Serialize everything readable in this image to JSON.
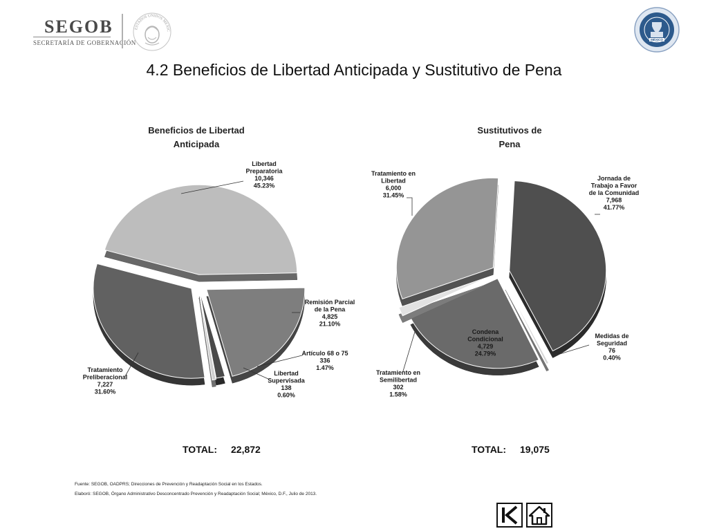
{
  "header": {
    "logo_text": "SEGOB",
    "logo_subtitle": "SECRETARÍA DE GOBERNACIÓN",
    "seal_text": "ESTADOS UNIDOS MEXICANOS",
    "right_logo_text": "MÉXICO",
    "title": "4.2 Beneficios de Libertad Anticipada y Sustitutivo de Pena"
  },
  "chart_data": [
    {
      "type": "pie",
      "title": [
        "Beneficios de Libertad",
        "Anticipada"
      ],
      "slices": [
        {
          "label": [
            "Libertad",
            "Preparatoria"
          ],
          "value": 10346,
          "value_text": "10,346",
          "percent": "45.23%",
          "color": "#bdbdbd"
        },
        {
          "label": [
            "Remisión Parcial",
            "de la Pena"
          ],
          "value": 4825,
          "value_text": "4,825",
          "percent": "21.10%",
          "color": "#7e7e7e"
        },
        {
          "label": [
            "Artículo 68 o 75"
          ],
          "value": 336,
          "value_text": "336",
          "percent": "1.47%",
          "color": "#4a4a4a"
        },
        {
          "label": [
            "Libertad",
            "Supervisada"
          ],
          "value": 138,
          "value_text": "138",
          "percent": "0.60%",
          "color": "#d0d0d0"
        },
        {
          "label": [
            "Tratamiento",
            "Preliberacional"
          ],
          "value": 7227,
          "value_text": "7,227",
          "percent": "31.60%",
          "color": "#616161"
        }
      ],
      "total_label": "TOTAL:",
      "total_value": "22,872"
    },
    {
      "type": "pie",
      "title": [
        "Sustitutivos de",
        "Pena"
      ],
      "slices": [
        {
          "label": [
            "Jornada de",
            "Trabajo a Favor",
            "de la Comunidad"
          ],
          "value": 7968,
          "value_text": "7,968",
          "percent": "41.77%",
          "color": "#4f4f4f"
        },
        {
          "label": [
            "Medidas de",
            "Seguridad"
          ],
          "value": 76,
          "value_text": "76",
          "percent": "0.40%",
          "color": "#d6d6d6"
        },
        {
          "label": [
            "Condena",
            "Condicional"
          ],
          "value": 4729,
          "value_text": "4,729",
          "percent": "24.79%",
          "color": "#6a6a6a"
        },
        {
          "label": [
            "Tratamiento en",
            "Semilibertad"
          ],
          "value": 302,
          "value_text": "302",
          "percent": "1.58%",
          "color": "#e2e2e2"
        },
        {
          "label": [
            "Tratamiento en",
            "Libertad"
          ],
          "value": 6000,
          "value_text": "6,000",
          "percent": "31.45%",
          "color": "#959595"
        }
      ],
      "total_label": "TOTAL:",
      "total_value": "19,075"
    }
  ],
  "footnotes": {
    "source": "Fuente: SEGOB, OADPRS; Direcciones de Prevención y Readaptación Social en los Estados.",
    "prepared": "Elaboró: SEGOB, Órgano Administrativo Desconcentrado Prevención y Readaptación Social; México, D.F., Julio de 2013."
  },
  "nav": {
    "back_icon": "skip-back-icon",
    "home_icon": "home-icon"
  }
}
